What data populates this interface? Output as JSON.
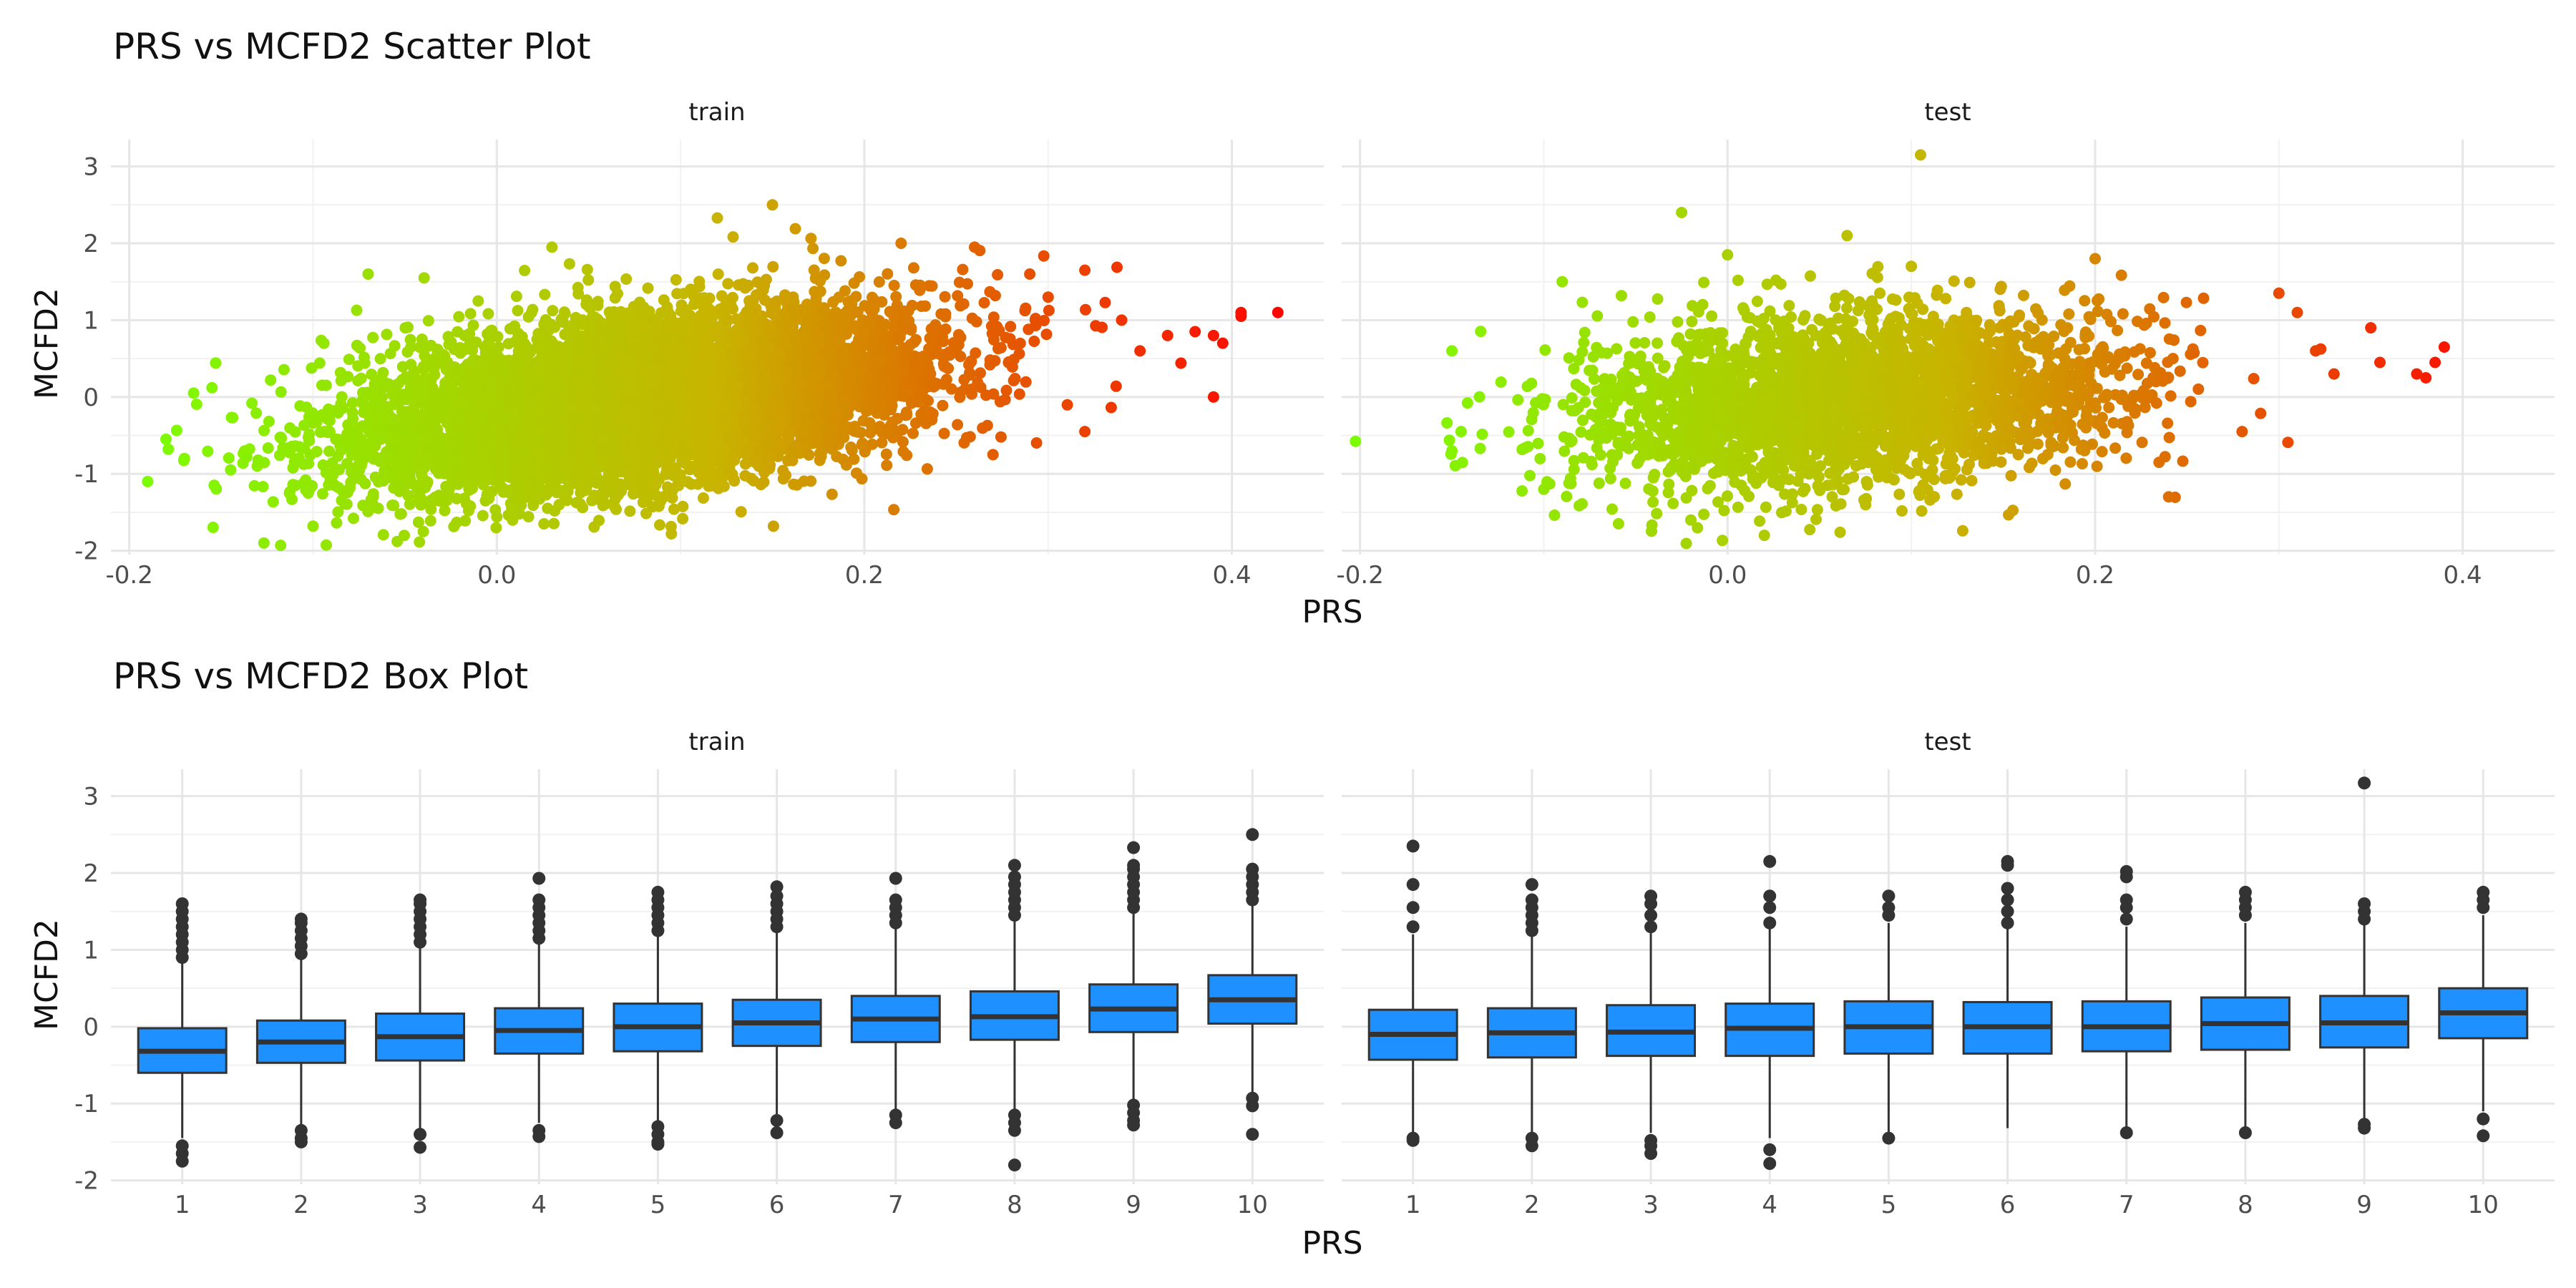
{
  "chart_data": [
    {
      "type": "scatter",
      "title": "PRS vs MCFD2 Scatter Plot",
      "xlabel": "PRS",
      "ylabel": "MCFD2",
      "facets": [
        "train",
        "test"
      ],
      "xlim": [
        -0.21,
        0.45
      ],
      "ylim": [
        -2.05,
        3.35
      ],
      "x_ticks": [
        -0.2,
        0.0,
        0.2,
        0.4
      ],
      "x_tick_labels": [
        "-0.2",
        "0.0",
        "0.2",
        "0.4"
      ],
      "y_ticks": [
        -2,
        -1,
        0,
        1,
        2,
        3
      ],
      "y_tick_labels": [
        "-2",
        "-1",
        "0",
        "1",
        "2",
        "3"
      ],
      "grid": true,
      "color_gradient": {
        "low": "#7CFC00",
        "mid": "#C8B400",
        "high": "#FF0000",
        "by": "PRS"
      },
      "series": [
        {
          "facet": "train",
          "approx_n": 8000,
          "prs_mean": 0.08,
          "prs_sd": 0.075,
          "mcfd2_intercept": -0.27,
          "mcfd2_slope": 2.9,
          "mcfd2_resid_sd": 0.52,
          "points": [
            [
              -0.19,
              -1.1
            ],
            [
              -0.18,
              -0.55
            ],
            [
              -0.17,
              -0.8
            ],
            [
              -0.165,
              0.05
            ],
            [
              -0.155,
              0.12
            ],
            [
              -0.1,
              -1.68
            ],
            [
              -0.07,
              1.6
            ],
            [
              -0.04,
              -1.75
            ],
            [
              0.0,
              -1.56
            ],
            [
              0.03,
              1.95
            ],
            [
              0.095,
              -1.78
            ],
            [
              0.12,
              2.33
            ],
            [
              0.15,
              2.5
            ],
            [
              0.22,
              2.0
            ],
            [
              0.26,
              1.95
            ],
            [
              0.29,
              1.6
            ],
            [
              0.3,
              1.3
            ],
            [
              0.32,
              1.65
            ],
            [
              0.34,
              1.0
            ],
            [
              0.35,
              0.6
            ],
            [
              0.365,
              0.8
            ],
            [
              0.38,
              0.85
            ],
            [
              0.39,
              0.8
            ],
            [
              0.395,
              0.7
            ],
            [
              0.39,
              0.0
            ],
            [
              0.405,
              1.05
            ],
            [
              0.405,
              1.1
            ],
            [
              0.425,
              1.1
            ],
            [
              0.32,
              -0.45
            ],
            [
              0.27,
              -0.75
            ]
          ]
        },
        {
          "facet": "test",
          "approx_n": 3000,
          "prs_mean": 0.07,
          "prs_sd": 0.075,
          "mcfd2_intercept": -0.13,
          "mcfd2_slope": 1.6,
          "mcfd2_resid_sd": 0.55,
          "points": [
            [
              -0.15,
              0.6
            ],
            [
              -0.15,
              -0.7
            ],
            [
              -0.145,
              -0.45
            ],
            [
              -0.1,
              -1.2
            ],
            [
              -0.09,
              1.5
            ],
            [
              -0.025,
              2.4
            ],
            [
              -0.02,
              -1.6
            ],
            [
              0.0,
              1.85
            ],
            [
              0.02,
              -1.8
            ],
            [
              0.065,
              2.1
            ],
            [
              0.1,
              1.7
            ],
            [
              0.105,
              3.15
            ],
            [
              0.2,
              1.8
            ],
            [
              0.3,
              1.35
            ],
            [
              0.31,
              1.1
            ],
            [
              0.32,
              0.6
            ],
            [
              0.33,
              0.3
            ],
            [
              0.35,
              0.9
            ],
            [
              0.355,
              0.45
            ],
            [
              0.375,
              0.3
            ],
            [
              0.38,
              0.25
            ],
            [
              0.385,
              0.45
            ],
            [
              0.39,
              0.65
            ],
            [
              0.28,
              -0.45
            ],
            [
              0.24,
              -1.3
            ]
          ]
        }
      ]
    },
    {
      "type": "box",
      "title": "PRS vs MCFD2 Box Plot",
      "xlabel": "PRS",
      "ylabel": "MCFD2",
      "facets": [
        "train",
        "test"
      ],
      "categories": [
        "1",
        "2",
        "3",
        "4",
        "5",
        "6",
        "7",
        "8",
        "9",
        "10"
      ],
      "ylim": [
        -2.05,
        3.35
      ],
      "y_ticks": [
        -2,
        -1,
        0,
        1,
        2,
        3
      ],
      "y_tick_labels": [
        "-2",
        "-1",
        "0",
        "1",
        "2",
        "3"
      ],
      "grid": true,
      "box_color": "#1E90FF",
      "series": [
        {
          "facet": "train",
          "boxes": [
            {
              "q1": -0.6,
              "median": -0.32,
              "q3": -0.02,
              "lo": -1.45,
              "hi": 0.85,
              "outliers": [
                0.9,
                1.0,
                1.1,
                1.2,
                1.3,
                1.4,
                1.5,
                1.6,
                -1.55,
                -1.65,
                -1.75
              ]
            },
            {
              "q1": -0.47,
              "median": -0.2,
              "q3": 0.08,
              "lo": -1.28,
              "hi": 0.9,
              "outliers": [
                0.95,
                1.05,
                1.15,
                1.25,
                1.35,
                1.4,
                -1.35,
                -1.45,
                -1.5
              ]
            },
            {
              "q1": -0.44,
              "median": -0.13,
              "q3": 0.17,
              "lo": -1.35,
              "hi": 1.07,
              "outliers": [
                1.1,
                1.2,
                1.3,
                1.4,
                1.5,
                1.6,
                1.65,
                -1.4,
                -1.57
              ]
            },
            {
              "q1": -0.35,
              "median": -0.05,
              "q3": 0.24,
              "lo": -1.25,
              "hi": 1.12,
              "outliers": [
                1.15,
                1.25,
                1.35,
                1.45,
                1.55,
                1.65,
                1.93,
                -1.35,
                -1.43
              ]
            },
            {
              "q1": -0.32,
              "median": 0.0,
              "q3": 0.3,
              "lo": -1.25,
              "hi": 1.22,
              "outliers": [
                1.25,
                1.35,
                1.45,
                1.55,
                1.65,
                1.75,
                -1.3,
                -1.4,
                -1.5,
                -1.53
              ]
            },
            {
              "q1": -0.25,
              "median": 0.05,
              "q3": 0.35,
              "lo": -1.15,
              "hi": 1.25,
              "outliers": [
                1.3,
                1.4,
                1.5,
                1.6,
                1.7,
                1.82,
                -1.22,
                -1.38
              ]
            },
            {
              "q1": -0.2,
              "median": 0.1,
              "q3": 0.4,
              "lo": -1.1,
              "hi": 1.3,
              "outliers": [
                1.35,
                1.45,
                1.55,
                1.65,
                1.93,
                -1.15,
                -1.25
              ]
            },
            {
              "q1": -0.17,
              "median": 0.13,
              "q3": 0.46,
              "lo": -1.08,
              "hi": 1.4,
              "outliers": [
                1.45,
                1.55,
                1.65,
                1.75,
                1.85,
                1.95,
                2.1,
                -1.15,
                -1.25,
                -1.35,
                -1.8
              ]
            },
            {
              "q1": -0.07,
              "median": 0.23,
              "q3": 0.55,
              "lo": -0.98,
              "hi": 1.5,
              "outliers": [
                1.55,
                1.65,
                1.75,
                1.85,
                1.95,
                2.05,
                2.1,
                2.33,
                -1.02,
                -1.12,
                -1.22,
                -1.28
              ]
            },
            {
              "q1": 0.04,
              "median": 0.35,
              "q3": 0.67,
              "lo": -0.88,
              "hi": 1.6,
              "outliers": [
                1.65,
                1.75,
                1.85,
                1.95,
                2.05,
                2.5,
                -0.93,
                -1.03,
                -1.4
              ]
            }
          ]
        },
        {
          "facet": "test",
          "boxes": [
            {
              "q1": -0.43,
              "median": -0.1,
              "q3": 0.22,
              "lo": -1.4,
              "hi": 1.2,
              "outliers": [
                1.3,
                1.55,
                1.85,
                2.35,
                -1.45,
                -1.48
              ]
            },
            {
              "q1": -0.4,
              "median": -0.08,
              "q3": 0.24,
              "lo": -1.38,
              "hi": 1.22,
              "outliers": [
                1.25,
                1.35,
                1.45,
                1.55,
                1.65,
                1.85,
                -1.45,
                -1.55
              ]
            },
            {
              "q1": -0.38,
              "median": -0.07,
              "q3": 0.28,
              "lo": -1.38,
              "hi": 1.25,
              "outliers": [
                1.3,
                1.45,
                1.6,
                1.7,
                -1.48,
                -1.55,
                -1.65
              ]
            },
            {
              "q1": -0.38,
              "median": -0.02,
              "q3": 0.3,
              "lo": -1.45,
              "hi": 1.3,
              "outliers": [
                1.35,
                1.55,
                1.7,
                2.15,
                -1.6,
                -1.78
              ]
            },
            {
              "q1": -0.35,
              "median": 0.0,
              "q3": 0.33,
              "lo": -1.4,
              "hi": 1.35,
              "outliers": [
                1.45,
                1.55,
                1.7,
                -1.45
              ]
            },
            {
              "q1": -0.35,
              "median": 0.0,
              "q3": 0.32,
              "lo": -1.32,
              "hi": 1.3,
              "outliers": [
                1.35,
                1.5,
                1.65,
                1.8,
                2.1,
                2.15
              ]
            },
            {
              "q1": -0.32,
              "median": 0.0,
              "q3": 0.33,
              "lo": -1.3,
              "hi": 1.3,
              "outliers": [
                1.4,
                1.55,
                1.65,
                1.95,
                2.02,
                -1.38
              ]
            },
            {
              "q1": -0.3,
              "median": 0.04,
              "q3": 0.38,
              "lo": -1.3,
              "hi": 1.35,
              "outliers": [
                1.45,
                1.55,
                1.65,
                1.75,
                -1.38
              ]
            },
            {
              "q1": -0.27,
              "median": 0.05,
              "q3": 0.4,
              "lo": -1.2,
              "hi": 1.35,
              "outliers": [
                1.4,
                1.5,
                1.6,
                3.17,
                -1.27,
                -1.32
              ]
            },
            {
              "q1": -0.15,
              "median": 0.18,
              "q3": 0.5,
              "lo": -1.1,
              "hi": 1.45,
              "outliers": [
                1.55,
                1.65,
                1.75,
                -1.2,
                -1.42
              ]
            }
          ]
        }
      ]
    }
  ]
}
